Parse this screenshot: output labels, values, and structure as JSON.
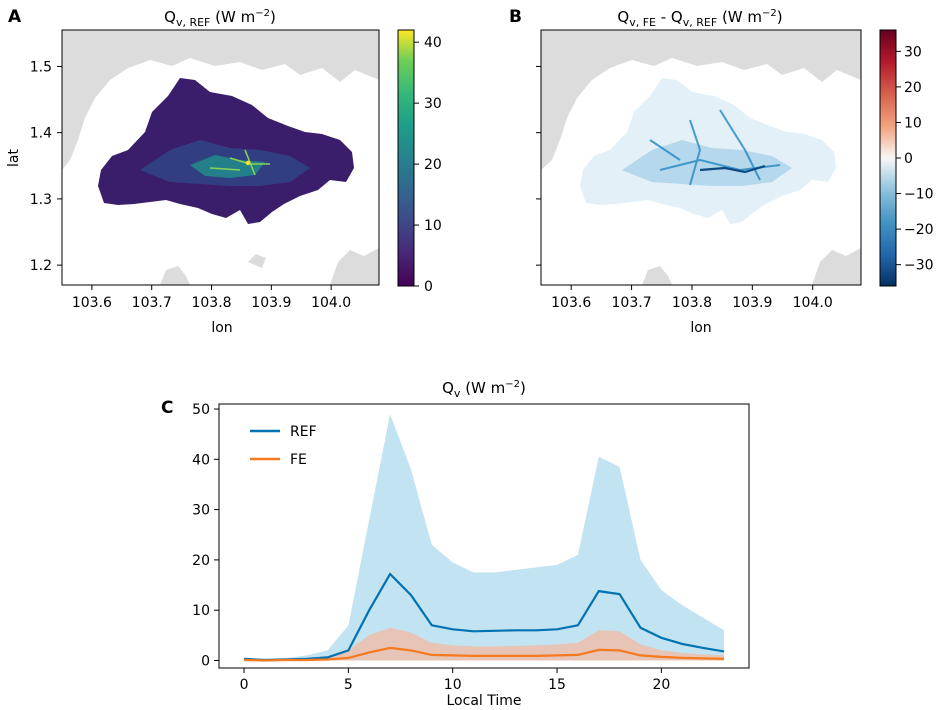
{
  "panels": {
    "a": {
      "letter": "A",
      "title_main": "Q",
      "title_sub": "v, REF",
      "title_unit": " (W m",
      "title_exp": "−2",
      "title_close": ")",
      "xlabel": "lon",
      "ylabel": "lat",
      "x_ticks": [
        "103.6",
        "103.7",
        "103.8",
        "103.9",
        "104.0"
      ],
      "y_ticks": [
        "1.5",
        "1.4",
        "1.3",
        "1.2"
      ],
      "colorbar_ticks": [
        "40",
        "30",
        "20",
        "10",
        "0"
      ],
      "colormap": "viridis"
    },
    "b": {
      "letter": "B",
      "title_main1": "Q",
      "title_sub1": "v, FE",
      "title_mid": " - Q",
      "title_sub2": "v, REF",
      "title_unit": " (W m",
      "title_exp": "−2",
      "title_close": ")",
      "xlabel": "lon",
      "x_ticks": [
        "103.6",
        "103.7",
        "103.8",
        "103.9",
        "104.0"
      ],
      "colorbar_ticks": [
        "30",
        "20",
        "10",
        "0",
        "−10",
        "−20",
        "−30"
      ],
      "colormap": "RdBu_r"
    }
  },
  "chart_data": [
    {
      "type": "heatmap",
      "panel": "A",
      "title": "Qv,REF (W m−2)",
      "xlabel": "lon",
      "ylabel": "lat",
      "xlim": [
        103.55,
        104.08
      ],
      "ylim": [
        1.17,
        1.555
      ],
      "colorbar_range": [
        0,
        42
      ],
      "colormap": "viridis"
    },
    {
      "type": "heatmap",
      "panel": "B",
      "title": "Qv,FE - Qv,REF (W m−2)",
      "xlabel": "lon",
      "xlim": [
        103.55,
        104.08
      ],
      "ylim": [
        1.17,
        1.555
      ],
      "colorbar_range": [
        -36,
        36
      ],
      "colormap": "RdBu_r"
    },
    {
      "type": "line",
      "panel": "C",
      "title": "Qv (W m−2)",
      "xlabel": "Local Time",
      "ylabel": "",
      "xlim": [
        -1.2,
        24.2
      ],
      "ylim": [
        -1.5,
        51
      ],
      "x_ticks": [
        0,
        5,
        10,
        15,
        20
      ],
      "y_ticks": [
        0,
        10,
        20,
        30,
        40,
        50
      ],
      "x": [
        0,
        1,
        2,
        3,
        4,
        5,
        6,
        7,
        8,
        9,
        10,
        11,
        12,
        13,
        14,
        15,
        16,
        17,
        18,
        19,
        20,
        21,
        22,
        23
      ],
      "series": [
        {
          "name": "REF",
          "color": "#0072b2",
          "values": [
            0.3,
            0.1,
            0.2,
            0.3,
            0.6,
            2.0,
            10.0,
            17.2,
            13.0,
            7.0,
            6.2,
            5.8,
            5.9,
            6.0,
            6.0,
            6.2,
            7.0,
            13.8,
            13.2,
            6.5,
            4.5,
            3.3,
            2.5,
            1.8
          ],
          "band_upper": [
            0.5,
            0.3,
            0.5,
            1.0,
            2.0,
            7.0,
            28.0,
            49.0,
            38.0,
            23.0,
            19.5,
            17.5,
            17.5,
            18.0,
            18.5,
            19.0,
            21.0,
            40.5,
            38.5,
            20.0,
            14.0,
            11.0,
            8.5,
            6.0
          ],
          "band_color": "#bfe1f0"
        },
        {
          "name": "FE",
          "color": "#f47a20",
          "values": [
            0.1,
            0.0,
            0.1,
            0.1,
            0.2,
            0.5,
            1.6,
            2.5,
            2.0,
            1.1,
            1.0,
            0.9,
            0.9,
            0.9,
            0.9,
            1.0,
            1.1,
            2.1,
            2.0,
            1.0,
            0.7,
            0.5,
            0.4,
            0.3
          ],
          "band_upper": [
            0.2,
            0.1,
            0.2,
            0.3,
            0.6,
            2.0,
            5.0,
            6.5,
            5.5,
            3.5,
            3.0,
            2.8,
            2.8,
            2.9,
            3.0,
            3.2,
            3.5,
            6.0,
            5.8,
            3.2,
            2.0,
            1.5,
            1.2,
            1.0
          ],
          "band_color": "#e9c2b1"
        }
      ],
      "legend": "top-left"
    }
  ],
  "panel_c": {
    "letter": "C",
    "title_main": "Q",
    "title_sub": "v",
    "title_unit": " (W m",
    "title_exp": "−2",
    "title_close": ")",
    "xlabel": "Local Time",
    "x_ticks": [
      "0",
      "5",
      "10",
      "15",
      "20"
    ],
    "y_ticks": [
      "50",
      "40",
      "30",
      "20",
      "10",
      "0"
    ],
    "legend": [
      "REF",
      "FE"
    ]
  },
  "colors": {
    "land_gray": "#dcdcdc",
    "ref_line": "#0072b2",
    "fe_line": "#f47a20"
  }
}
